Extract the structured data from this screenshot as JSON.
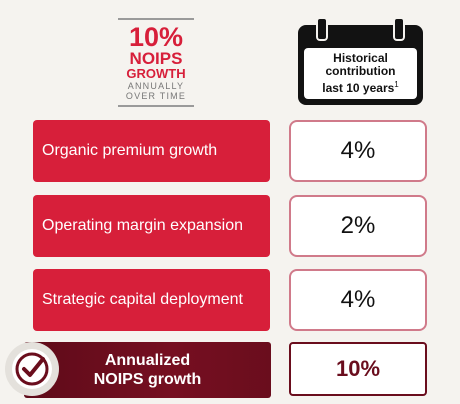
{
  "headline": {
    "percent": "10%",
    "noips": "NOIPS",
    "growth": "GROWTH",
    "annually": "ANNUALLY",
    "over_time": "OVER TIME"
  },
  "calendar": {
    "line1": "Historical",
    "line2": "contribution",
    "line3": "last 10 years",
    "footnote": "1"
  },
  "rows": [
    {
      "label": "Organic premium growth",
      "value": "4%"
    },
    {
      "label": "Operating margin expansion",
      "value": "2%"
    },
    {
      "label": "Strategic capital deployment",
      "value": "4%"
    }
  ],
  "total": {
    "line1": "Annualized",
    "line2": "NOIPS growth",
    "value": "10%"
  },
  "icons": {
    "calendar": "calendar-icon",
    "check": "checkmark-circle-icon"
  },
  "colors": {
    "accent_red": "#d71f3a",
    "dark_red": "#6a0d1d",
    "background": "#f5f3ef"
  }
}
